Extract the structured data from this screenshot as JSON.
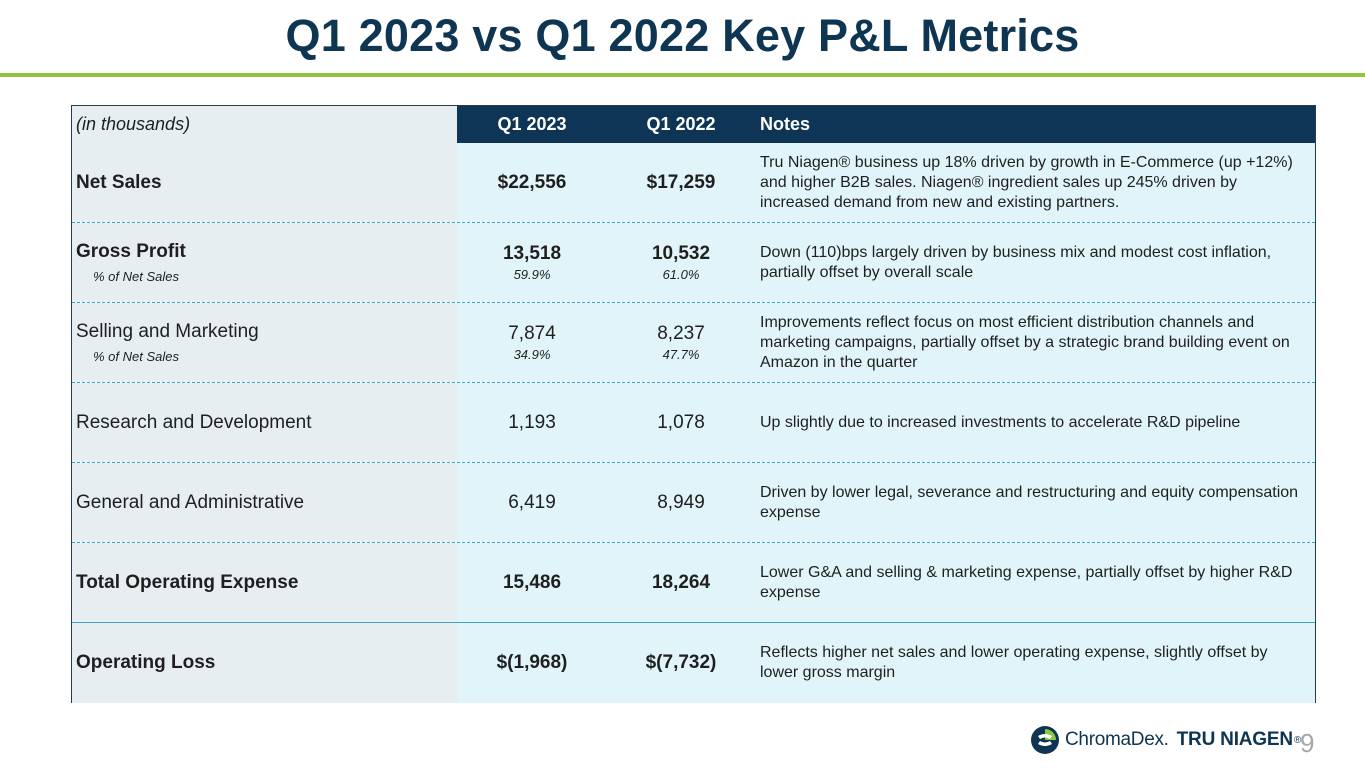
{
  "title": "Q1 2023 vs Q1 2022 Key P&L Metrics",
  "table": {
    "headers": {
      "label": "(in thousands)",
      "q1_2023": "Q1 2023",
      "q1_2022": "Q1 2022",
      "notes": "Notes"
    },
    "rows": [
      {
        "label": "Net Sales",
        "q1_2023": "$22,556",
        "q1_2022": "$17,259",
        "notes": "Tru Niagen® business up 18% driven by growth in E-Commerce (up +12%) and higher B2B sales. Niagen® ingredient sales up 245% driven by increased demand from new and existing partners."
      },
      {
        "label": "Gross Profit",
        "sublabel": "% of Net Sales",
        "q1_2023": "13,518",
        "q1_2023_pct": "59.9%",
        "q1_2022": "10,532",
        "q1_2022_pct": "61.0%",
        "notes": "Down (110)bps largely driven by business mix and modest cost inflation, partially offset by overall scale"
      },
      {
        "label": "Selling and Marketing",
        "sublabel": "% of Net Sales",
        "q1_2023": "7,874",
        "q1_2023_pct": "34.9%",
        "q1_2022": "8,237",
        "q1_2022_pct": "47.7%",
        "notes": "Improvements reflect focus on most efficient distribution channels and marketing campaigns, partially offset by a strategic brand building event on Amazon in the quarter"
      },
      {
        "label": "Research and Development",
        "q1_2023": "1,193",
        "q1_2022": "1,078",
        "notes": "Up slightly due to increased investments to accelerate R&D pipeline"
      },
      {
        "label": "General and Administrative",
        "q1_2023": "6,419",
        "q1_2022": "8,949",
        "notes": "Driven by lower legal, severance and restructuring and equity compensation expense"
      },
      {
        "label": "Total Operating Expense",
        "q1_2023": "15,486",
        "q1_2022": "18,264",
        "notes": "Lower G&A and selling & marketing expense, partially offset by higher R&D expense"
      },
      {
        "label": "Operating Loss",
        "q1_2023": "$(1,968)",
        "q1_2022": "$(7,732)",
        "notes": "Reflects higher net sales and lower operating expense, slightly offset by lower gross margin"
      }
    ]
  },
  "footer": {
    "logo_chromadex": "ChromaDex.",
    "logo_truniagen": "TRU NIAGEN",
    "logo_truniagen_mark": "®",
    "page_number": "9"
  },
  "colors": {
    "title": "#0e3552",
    "accent_rule": "#8dc63f",
    "header_bg": "#0f3556",
    "row_bg": "#e1f4fa",
    "divider": "#3aa6c8"
  }
}
